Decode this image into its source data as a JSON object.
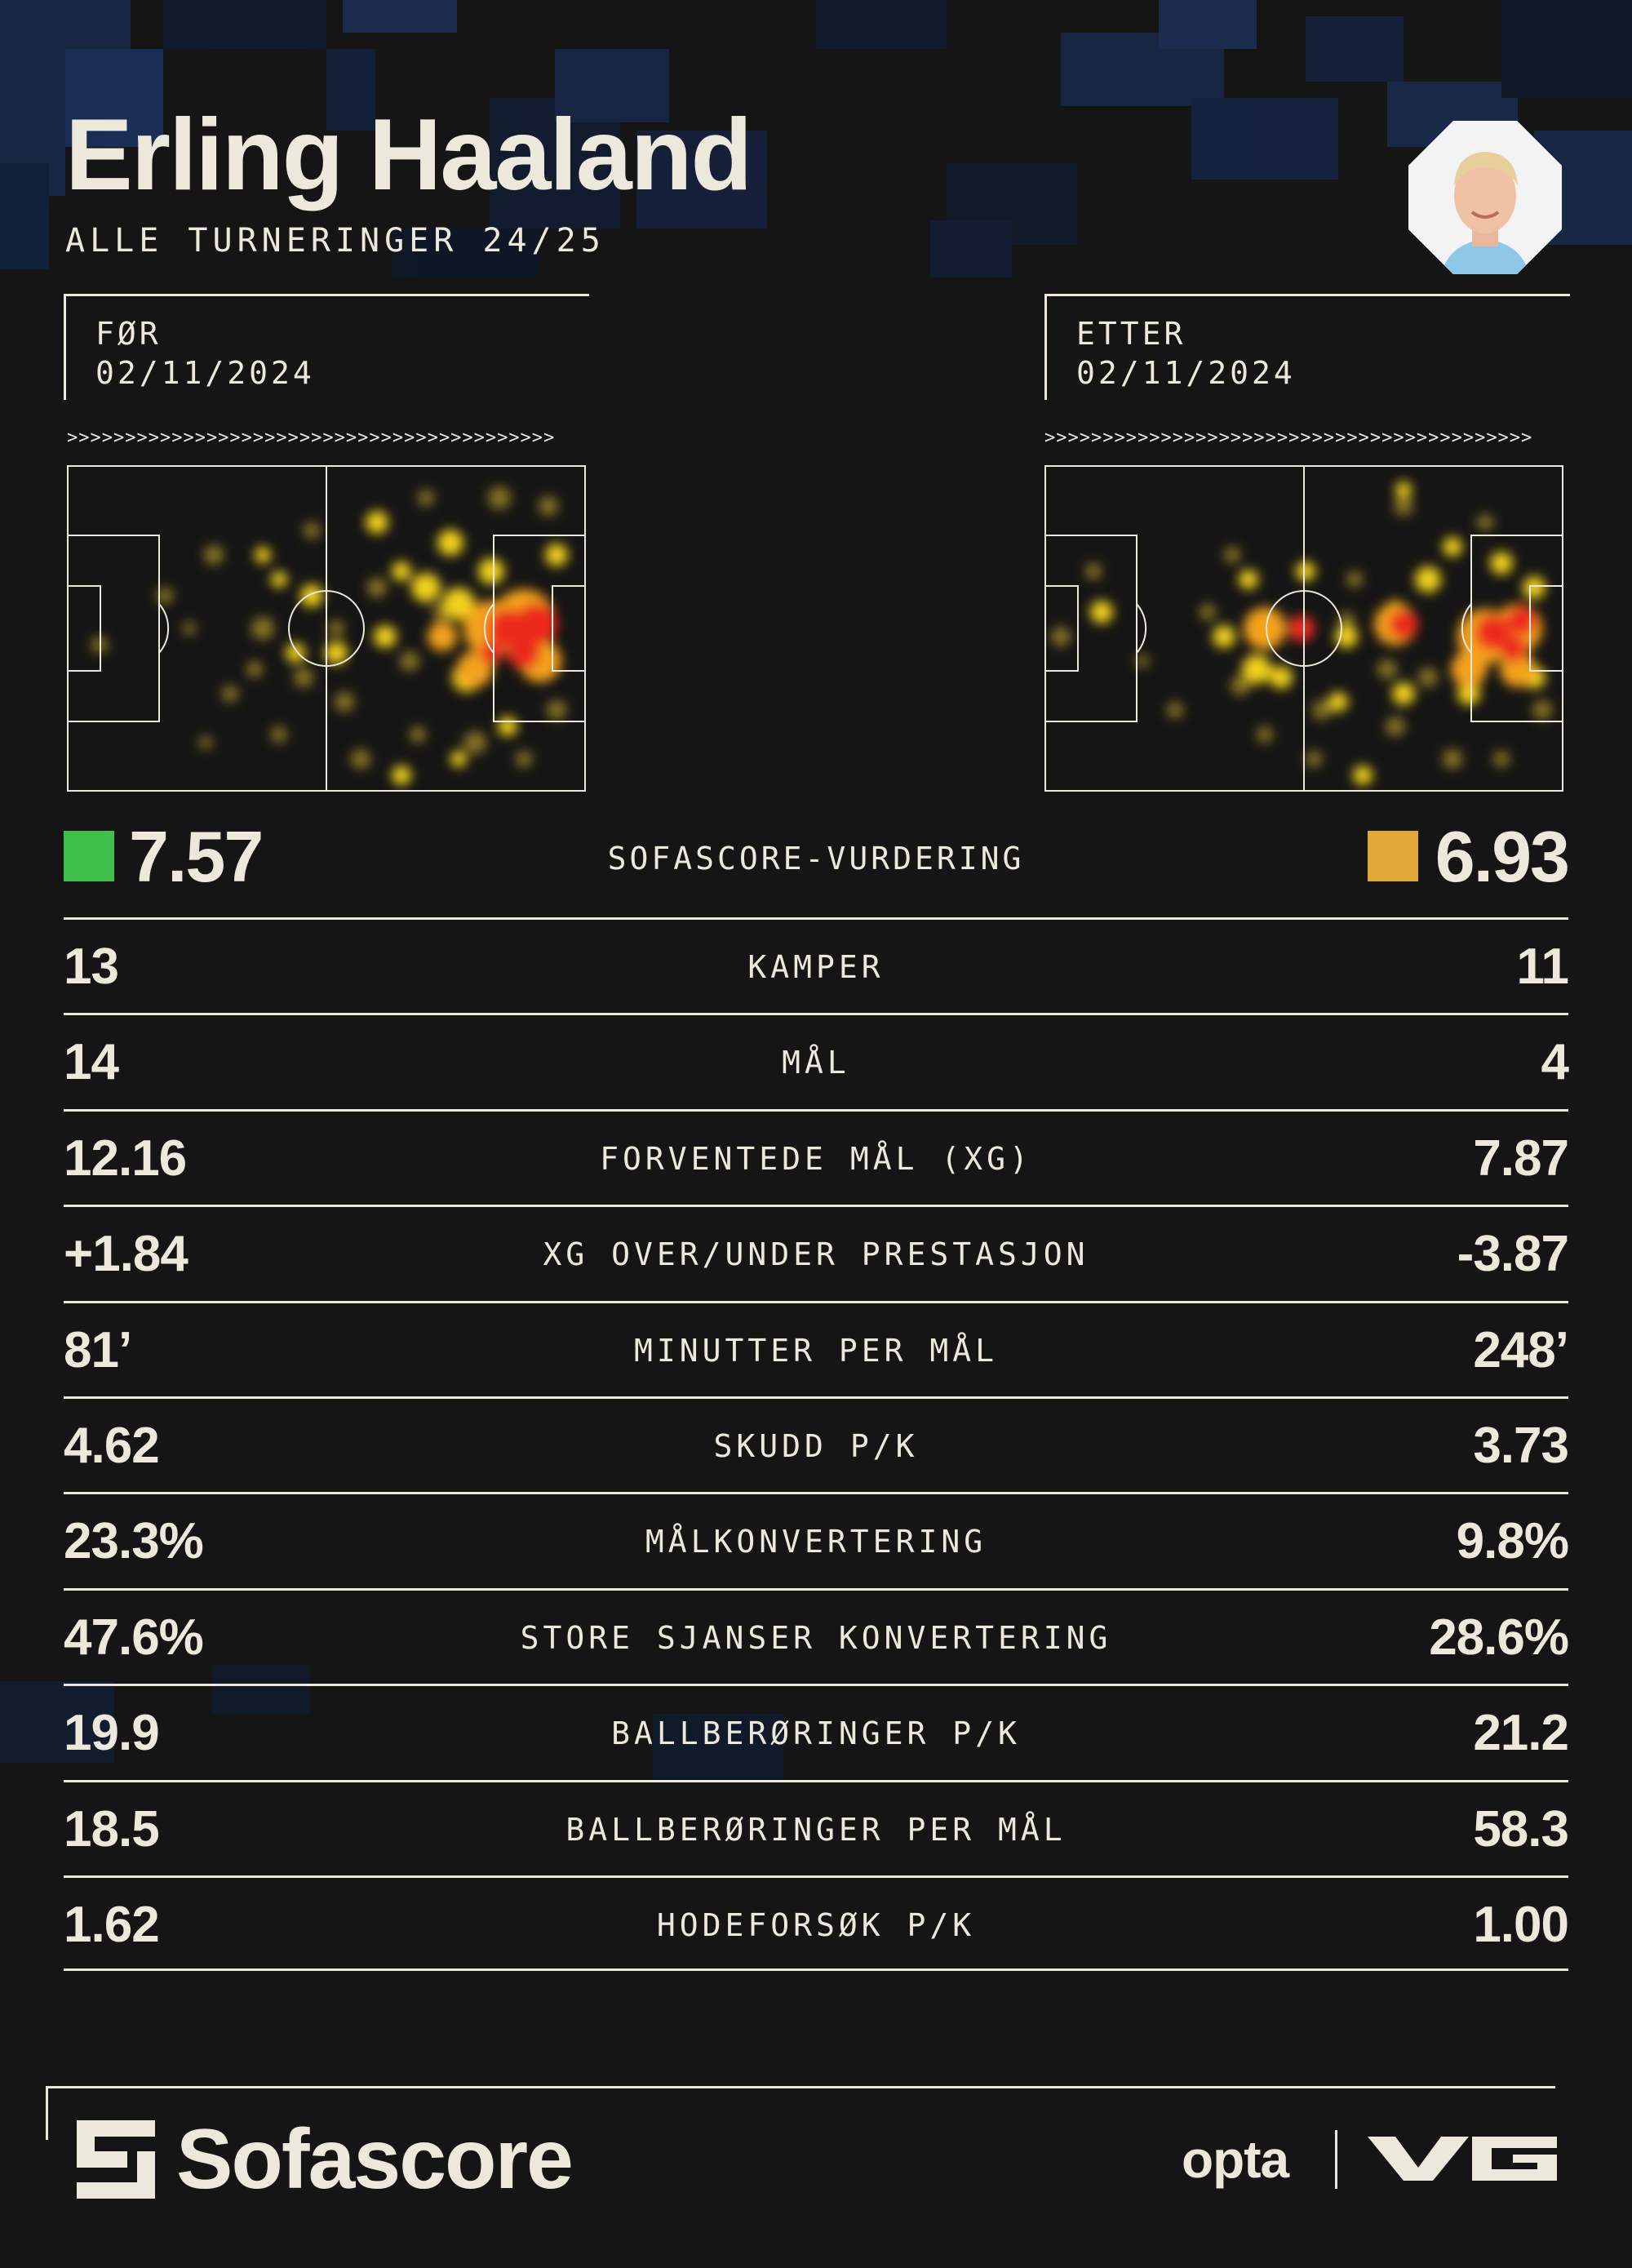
{
  "header": {
    "player_name": "Erling Haaland",
    "season": "ALLE TURNERINGER 24/25"
  },
  "periods": {
    "before": {
      "label": "FØR",
      "date": "02/11/2024"
    },
    "after": {
      "label": "ETTER",
      "date": "02/11/2024"
    },
    "arrows": ">>>>>>>>>>>>>>>>>>>>>>>>>>>>>>>>>>>>>>>>>>"
  },
  "rating": {
    "label": "SOFASCORE-VURDERING",
    "before": "7.57",
    "after": "6.93",
    "before_color": "#3fbf4a",
    "after_color": "#e0a93a"
  },
  "stats": [
    {
      "label": "KAMPER",
      "before": "13",
      "after": "11"
    },
    {
      "label": "MÅL",
      "before": "14",
      "after": "4"
    },
    {
      "label": "FORVENTEDE MÅL (XG)",
      "before": "12.16",
      "after": "7.87"
    },
    {
      "label": "XG OVER/UNDER PRESTASJON",
      "before": "+1.84",
      "after": "-3.87"
    },
    {
      "label": "MINUTTER PER MÅL",
      "before": "81’",
      "after": "248’"
    },
    {
      "label": "SKUDD P/K",
      "before": "4.62",
      "after": "3.73"
    },
    {
      "label": "MÅLKONVERTERING",
      "before": "23.3%",
      "after": "9.8%"
    },
    {
      "label": "STORE SJANSER KONVERTERING",
      "before": "47.6%",
      "after": "28.6%"
    },
    {
      "label": "BALLBERØRINGER P/K",
      "before": "19.9",
      "after": "21.2"
    },
    {
      "label": "BALLBERØRINGER PER MÅL",
      "before": "18.5",
      "after": "58.3"
    },
    {
      "label": "HODEFORSØK P/K",
      "before": "1.62",
      "after": "1.00"
    }
  ],
  "footer": {
    "brand": "Sofascore",
    "partner": "opta",
    "partner2_icon": "vg-logo"
  },
  "colors": {
    "background": "#151515",
    "text": "#ece8dc",
    "pixel_blue": "#1a2a4e"
  }
}
